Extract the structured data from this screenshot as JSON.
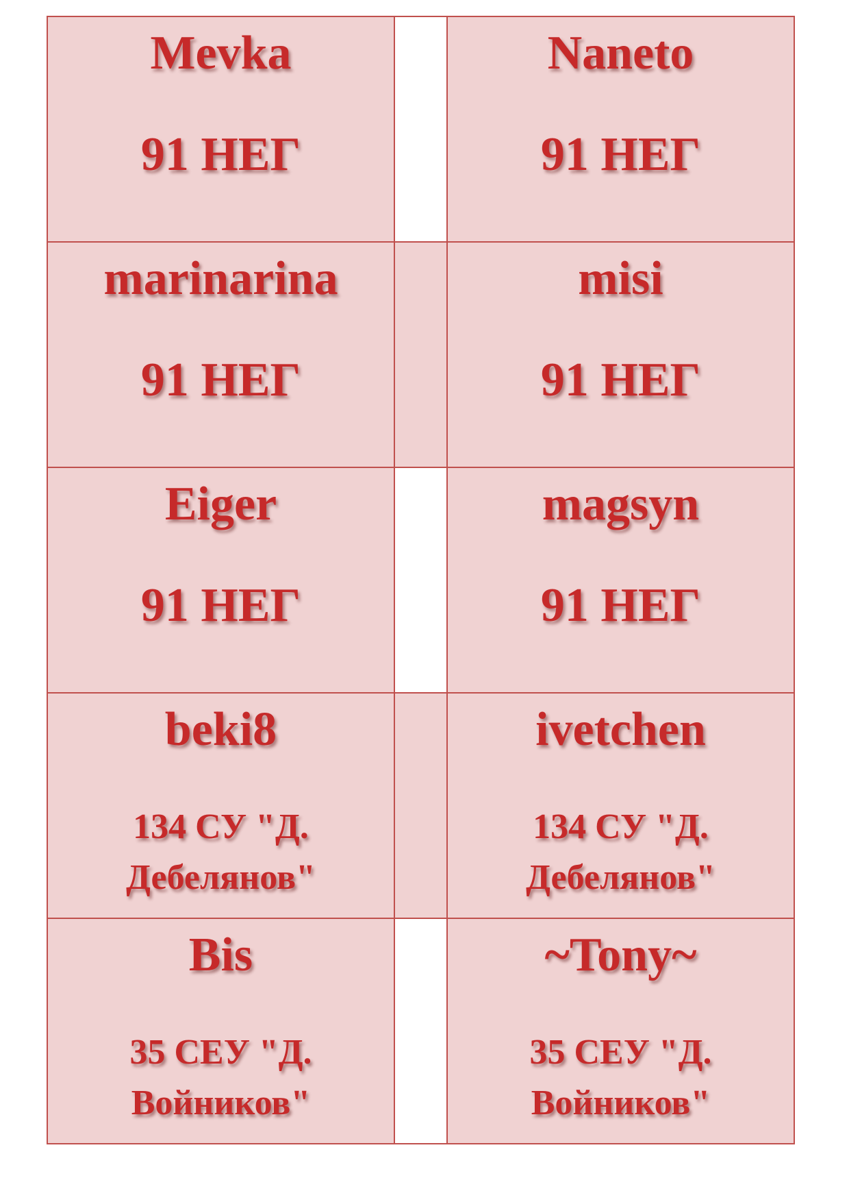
{
  "cards": [
    [
      {
        "name": "Mevka",
        "school": "91 НЕГ"
      },
      {
        "name": "Naneto",
        "school": "91 НЕГ"
      }
    ],
    [
      {
        "name": "marinarina",
        "school": "91 НЕГ"
      },
      {
        "name": "misi",
        "school": "91 НЕГ"
      }
    ],
    [
      {
        "name": "Eiger",
        "school": "91 НЕГ"
      },
      {
        "name": "magsyn",
        "school": "91 НЕГ"
      }
    ],
    [
      {
        "name": "beki8",
        "school": "134 СУ \"Д. Дебелянов\""
      },
      {
        "name": "ivetchen",
        "school": "134 СУ \"Д. Дебелянов\""
      }
    ],
    [
      {
        "name": "Bis",
        "school": "35 СЕУ \"Д. Войников\""
      },
      {
        "name": "~Tony~",
        "school": "35 СЕУ \"Д. Войников\""
      }
    ]
  ],
  "colors": {
    "text": "#c62a2a",
    "cell": "#f0d2d2",
    "border": "#c0504d"
  }
}
